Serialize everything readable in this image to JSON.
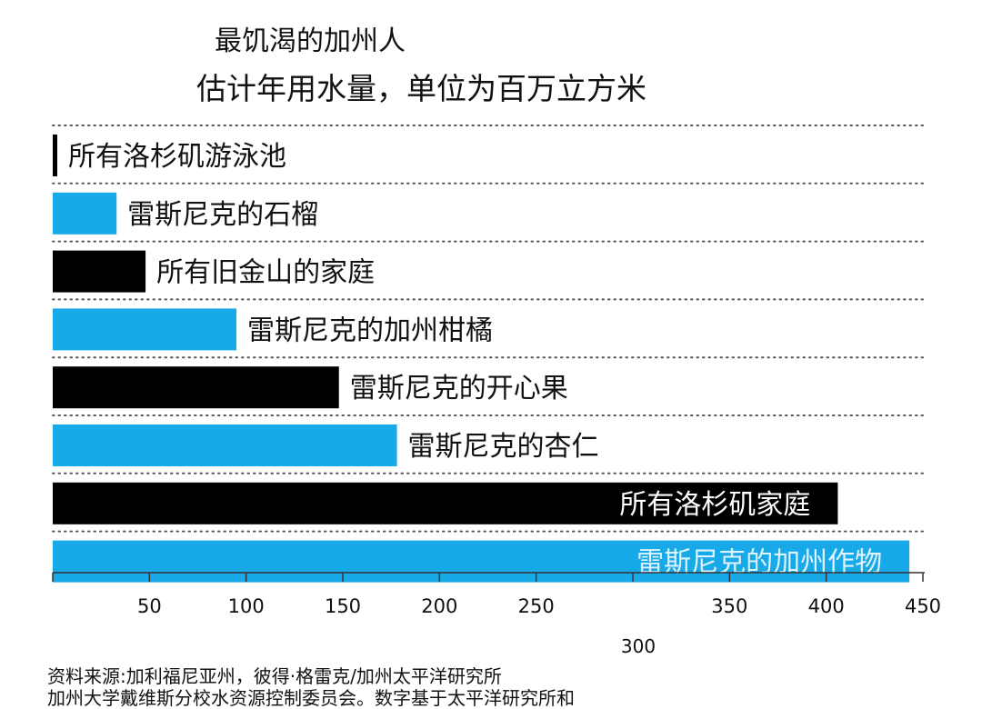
{
  "chart_data": {
    "type": "bar",
    "orientation": "horizontal",
    "title": "最饥渴的加州人",
    "subtitle": "估计年用水量，单位为百万立方米",
    "categories": [
      "所有洛杉矶游泳池",
      "雷斯尼克的石榴",
      "所有旧金山的家庭",
      "雷斯尼克的加州柑橘",
      "雷斯尼克的开心果",
      "雷斯尼克的杏仁",
      "所有洛杉矶家庭",
      "雷斯尼克的加州作物"
    ],
    "values": [
      2,
      33,
      48,
      95,
      148,
      178,
      406,
      443
    ],
    "bar_colors": [
      "#000000",
      "#17a9e8",
      "#000000",
      "#17a9e8",
      "#000000",
      "#17a9e8",
      "#000000",
      "#17a9e8"
    ],
    "label_position": [
      "outside",
      "outside",
      "outside",
      "outside",
      "outside",
      "outside",
      "inside",
      "inside"
    ],
    "xlim": [
      0,
      450
    ],
    "xticks": [
      "50",
      "100",
      "150",
      "200",
      "250",
      "300",
      "350",
      "400",
      "450"
    ],
    "grid": "dotted horizontal separators"
  },
  "source_line1": "资料来源:加利福尼亚州，彼得·格雷克/加州太平洋研究所",
  "source_line2": "加州大学戴维斯分校水资源控制委员会。数字基于太平洋研究所和"
}
